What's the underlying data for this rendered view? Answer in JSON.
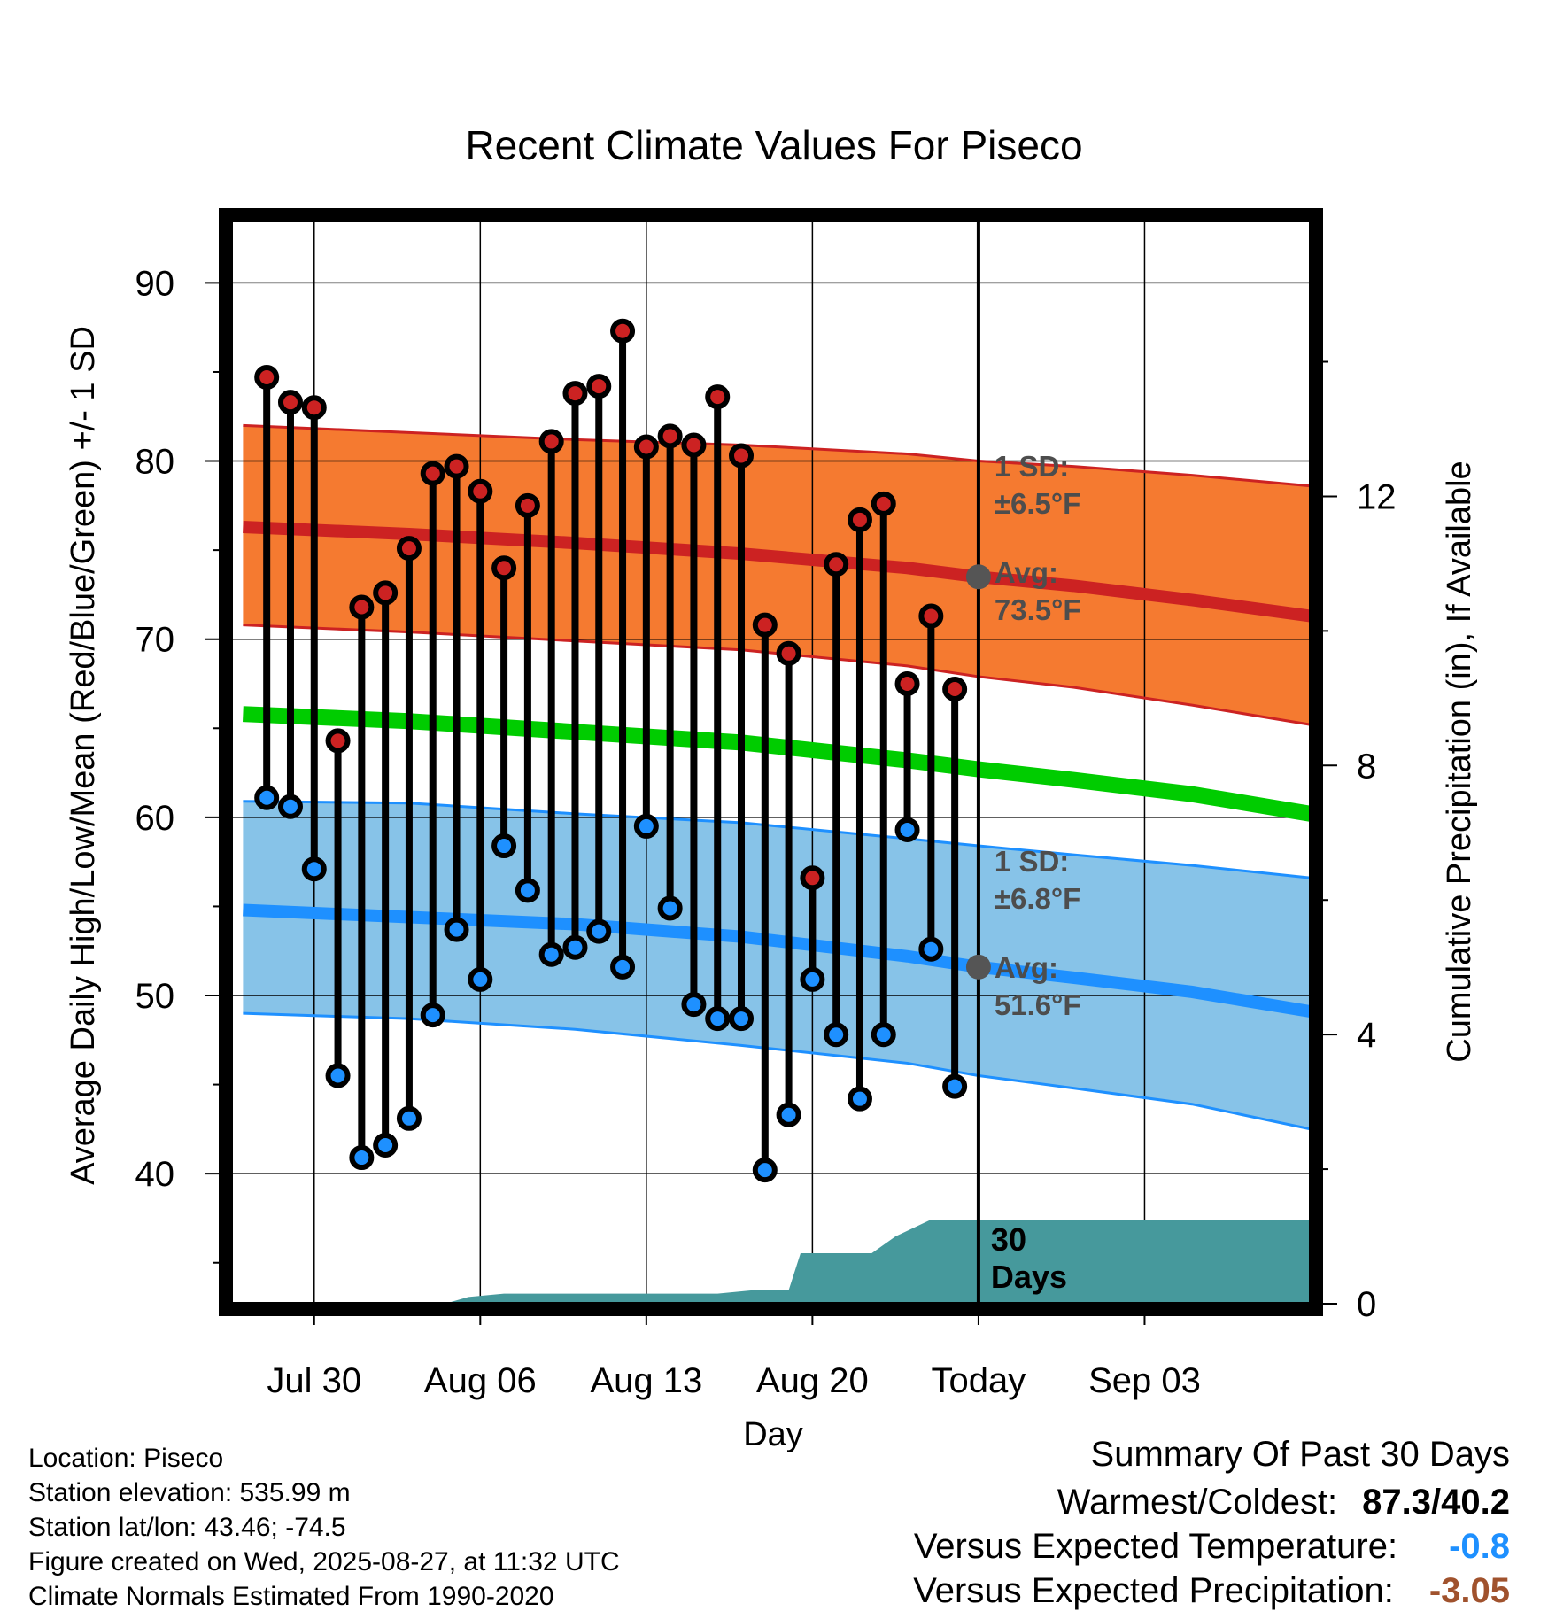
{
  "chart_data": {
    "type": "line",
    "title": "Recent Climate Values For Piseco",
    "xlabel": "Day",
    "ylabel": "Average Daily High/Low/Mean (Red/Blue/Green) +/- 1 SD",
    "y2label": "Cumulative Precipitation (in), If Available",
    "ylim": [
      32.7,
      93.5
    ],
    "y2lim": [
      0,
      16.1
    ],
    "xlim_days_relative_to_today": [
      -31.5,
      14
    ],
    "x_ticks": [
      {
        "day": -28,
        "label": "Jul 30"
      },
      {
        "day": -21,
        "label": "Aug 06"
      },
      {
        "day": -14,
        "label": "Aug 13"
      },
      {
        "day": -7,
        "label": "Aug 20"
      },
      {
        "day": 0,
        "label": "Today"
      },
      {
        "day": 7,
        "label": "Sep 03"
      }
    ],
    "y_ticks": [
      40,
      50,
      60,
      70,
      80,
      90
    ],
    "y2_ticks": [
      0,
      4,
      8,
      12
    ],
    "grid": true,
    "today_marker_label": "30\nDays",
    "normals": {
      "day": [
        -31,
        -24,
        -17,
        -10,
        -3,
        0,
        4,
        9,
        14
      ],
      "high_mean": [
        76.3,
        75.9,
        75.4,
        74.8,
        74.0,
        73.5,
        73.0,
        72.2,
        71.3
      ],
      "high_upper": [
        82.0,
        81.6,
        81.2,
        80.9,
        80.4,
        80.0,
        79.7,
        79.2,
        78.6
      ],
      "high_lower": [
        70.8,
        70.4,
        69.9,
        69.4,
        68.5,
        67.9,
        67.3,
        66.3,
        65.2
      ],
      "mean": [
        65.8,
        65.4,
        64.8,
        64.2,
        63.2,
        62.7,
        62.1,
        61.3,
        60.2
      ],
      "low_mean": [
        54.8,
        54.4,
        54.0,
        53.3,
        52.2,
        51.6,
        51.0,
        50.2,
        49.1
      ],
      "low_upper": [
        60.9,
        60.8,
        60.2,
        59.7,
        58.8,
        58.4,
        57.9,
        57.3,
        56.6
      ],
      "low_lower": [
        49.0,
        48.7,
        48.1,
        47.2,
        46.2,
        45.5,
        44.8,
        43.9,
        42.5
      ]
    },
    "high_color": "#cc2222",
    "low_color": "#1e90ff",
    "mean_color": "#00cc00",
    "high_band_color": "#f57a30",
    "low_band_color": "#87c3e8",
    "precip_color": "#46999c",
    "series": [
      {
        "name": "High",
        "day": [
          -30,
          -29,
          -28,
          -27,
          -26,
          -25,
          -24,
          -23,
          -22,
          -21,
          -20,
          -19,
          -18,
          -17,
          -16,
          -15,
          -14,
          -13,
          -12,
          -11,
          -10,
          -9,
          -8,
          -7,
          -6,
          -5,
          -4,
          -3,
          -2,
          -1
        ],
        "values": [
          84.7,
          83.3,
          83.0,
          64.3,
          71.8,
          72.6,
          75.1,
          79.3,
          79.7,
          78.3,
          74.0,
          77.5,
          81.1,
          83.8,
          84.2,
          87.3,
          80.8,
          81.4,
          80.9,
          83.6,
          80.3,
          70.8,
          69.2,
          56.6,
          74.2,
          76.7,
          77.6,
          67.5,
          71.3,
          67.2
        ]
      },
      {
        "name": "Low",
        "day": [
          -30,
          -29,
          -28,
          -27,
          -26,
          -25,
          -24,
          -23,
          -22,
          -21,
          -20,
          -19,
          -18,
          -17,
          -16,
          -15,
          -14,
          -13,
          -12,
          -11,
          -10,
          -9,
          -8,
          -7,
          -6,
          -5,
          -4,
          -3,
          -2,
          -1
        ],
        "values": [
          61.1,
          60.6,
          57.1,
          45.5,
          40.9,
          41.6,
          43.1,
          48.9,
          53.7,
          50.9,
          58.4,
          55.9,
          52.3,
          52.7,
          53.6,
          51.6,
          59.5,
          54.9,
          49.5,
          48.7,
          48.7,
          40.2,
          43.3,
          50.9,
          47.8,
          44.2,
          47.8,
          59.3,
          52.6,
          44.9
        ]
      },
      {
        "name": "Cumulative Precipitation",
        "day": [
          -31.5,
          -22.5,
          -21.5,
          -20,
          -11,
          -9.5,
          -8,
          -7.5,
          -4.5,
          -3.5,
          -2,
          0,
          14
        ],
        "values": [
          0,
          0,
          0.1,
          0.15,
          0.15,
          0.2,
          0.2,
          0.75,
          0.75,
          1.0,
          1.25,
          1.25,
          1.25
        ]
      }
    ],
    "annotations": [
      {
        "text1": "1 SD:",
        "text2": "±6.5°F"
      },
      {
        "text1": "Avg:",
        "text2": "73.5°F"
      },
      {
        "text1": "1 SD:",
        "text2": "±6.8°F"
      },
      {
        "text1": "Avg:",
        "text2": "51.6°F"
      }
    ]
  },
  "info": {
    "location": "Location: Piseco",
    "elevation": "Station elevation: 535.99 m",
    "latlon": "Station lat/lon: 43.46; -74.5",
    "created": "Figure created on Wed, 2025-08-27, at 11:32 UTC",
    "normals": "Climate Normals Estimated From 1990-2020"
  },
  "summary": {
    "heading": "Summary Of Past 30 Days",
    "warmest_label": "Warmest/Coldest:",
    "warmest_value": "87.3/40.2",
    "temp_label": "Versus Expected Temperature:",
    "temp_value": "-0.8",
    "temp_color": "#1e90ff",
    "precip_label": "Versus Expected Precipitation:",
    "precip_value": "-3.05",
    "precip_color": "#a0522d"
  }
}
